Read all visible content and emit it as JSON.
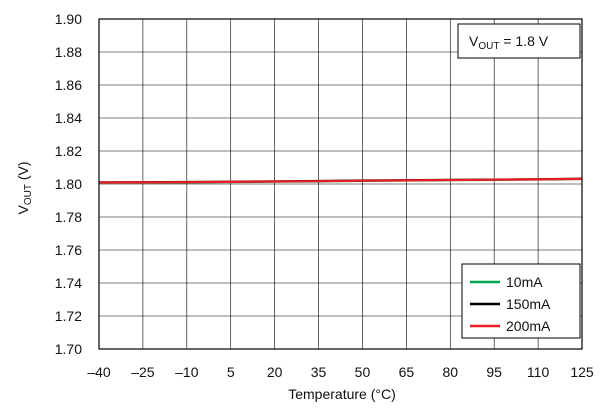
{
  "chart_data": {
    "type": "line",
    "title": "",
    "xlabel": "Temperature (°C)",
    "ylabel": {
      "base": "V",
      "sub": "OUT",
      "suffix": " (V)"
    },
    "xlim": [
      -40,
      125
    ],
    "ylim": [
      1.7,
      1.9
    ],
    "x_ticks": [
      -40,
      -25,
      -10,
      5,
      20,
      35,
      50,
      65,
      80,
      95,
      110,
      125
    ],
    "x_tick_labels": [
      "–40",
      "–25",
      "–10",
      "5",
      "20",
      "35",
      "50",
      "65",
      "80",
      "95",
      "110",
      "125"
    ],
    "y_ticks": [
      1.7,
      1.72,
      1.74,
      1.76,
      1.78,
      1.8,
      1.82,
      1.84,
      1.86,
      1.88,
      1.9
    ],
    "y_tick_labels": [
      "1.70",
      "1.72",
      "1.74",
      "1.76",
      "1.78",
      "1.80",
      "1.82",
      "1.84",
      "1.86",
      "1.88",
      "1.90"
    ],
    "grid": true,
    "legend_position": "bottom-right",
    "annotation": {
      "base": "V",
      "sub": "OUT",
      "suffix": " = 1.8 V",
      "position": "top-right"
    },
    "x": [
      -40,
      -25,
      -10,
      5,
      20,
      35,
      50,
      65,
      80,
      95,
      110,
      125
    ],
    "series": [
      {
        "name": "10mA",
        "color": "#00a651",
        "values": [
          1.8008,
          1.8009,
          1.801,
          1.8012,
          1.8014,
          1.8016,
          1.8019,
          1.8021,
          1.8023,
          1.8025,
          1.8027,
          1.803
        ]
      },
      {
        "name": "150mA",
        "color": "#000000",
        "values": [
          1.801,
          1.8011,
          1.8012,
          1.8014,
          1.8016,
          1.8018,
          1.8021,
          1.8023,
          1.8025,
          1.8027,
          1.8029,
          1.8032
        ]
      },
      {
        "name": "200mA",
        "color": "#ed1c24",
        "values": [
          1.8009,
          1.801,
          1.8011,
          1.8013,
          1.8015,
          1.8017,
          1.802,
          1.8022,
          1.8024,
          1.8026,
          1.8028,
          1.8031
        ]
      }
    ]
  }
}
